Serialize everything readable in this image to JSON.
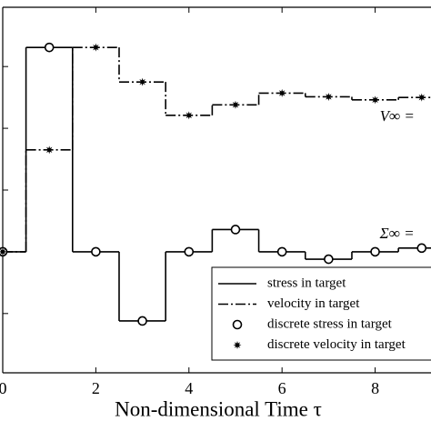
{
  "chart_data": {
    "type": "step",
    "xlabel": "Non-dimensional Time τ",
    "x": [
      0,
      1,
      2,
      3,
      4,
      5,
      6,
      7,
      8,
      9
    ],
    "series": [
      {
        "name": "stress in target",
        "style": "solid",
        "color": "#000000",
        "values": [
          0,
          3.31,
          0,
          -1.12,
          0,
          0.36,
          0,
          -0.12,
          0,
          0.06
        ]
      },
      {
        "name": "velocity in target",
        "style": "dashdot",
        "color": "#000000",
        "values": [
          0,
          1.65,
          3.31,
          2.75,
          2.21,
          2.38,
          2.57,
          2.51,
          2.46,
          2.5
        ]
      },
      {
        "name": "discrete stress in target",
        "style": "circle",
        "color": "#000000",
        "values": [
          0,
          3.31,
          0,
          -1.12,
          0,
          0.36,
          0,
          -0.12,
          0,
          0.06
        ]
      },
      {
        "name": "discrete velocity in target",
        "style": "star",
        "color": "#000000",
        "values": [
          0,
          1.65,
          3.31,
          2.75,
          2.21,
          2.38,
          2.57,
          2.51,
          2.46,
          2.5
        ]
      }
    ],
    "annotations": [
      {
        "text": "V∞ =",
        "x": 8.1,
        "y": 2.18
      },
      {
        "text": "Σ∞ =",
        "x": 8.1,
        "y": 0.28
      }
    ],
    "xlim": [
      0,
      9.2
    ],
    "xticks": [
      0,
      2,
      4,
      6,
      8
    ],
    "ylim": [
      -1.96,
      3.96
    ],
    "yticks": [
      -1,
      0,
      1,
      2,
      3
    ]
  }
}
